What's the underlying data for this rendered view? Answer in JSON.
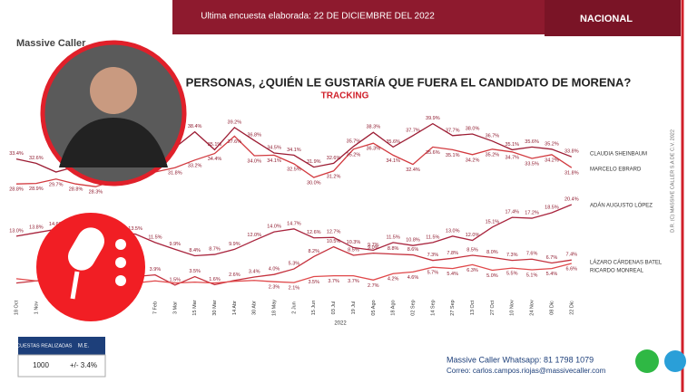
{
  "header": {
    "survey_date": "Ultima encuesta elaborada:  22 DE DICIEMBRE DEL 2022",
    "region": "NACIONAL",
    "logo": "Massive Caller",
    "copyright": "D.R. (C) MASSIVE CALLER S.A DE C.V. 2022"
  },
  "table": {
    "headers": [
      "ENCUESTAS REALIZADAS",
      "M.E."
    ],
    "row": [
      "1000",
      "+/- 3.4%"
    ]
  },
  "footer": {
    "whatsapp": "Massive Caller Whatsapp: 81 1798 1079",
    "email": "Correo: carlos.campos.riojas@massivecaller.com"
  },
  "chart_data": {
    "type": "line",
    "title": "PERSONAS, ¿QUIÉN LE GUSTARÍA QUE FUERA EL CANDIDATO DE MORENA?",
    "subtitle": "TRACKING",
    "year_label": "2022",
    "categories": [
      "18 Oct",
      "1 Nov",
      null,
      null,
      null,
      null,
      null,
      "7 Feb",
      "3 Mar",
      "15 Mar",
      "30 Mar",
      "14 Abr",
      "30 Abr",
      "18 May",
      "2 Jun",
      "15 Jun",
      "03 Jul",
      "19 Jul",
      "05 Ago",
      "18 Ago",
      "02 Sep",
      "14 Sep",
      "27 Sep",
      "13 Oct",
      "27 Oct",
      "10 Nov",
      "24 Nov",
      "08 Dic",
      "22 Dic"
    ],
    "ylim": [
      27,
      41
    ],
    "y2lim": [
      0,
      22
    ],
    "series": [
      {
        "name": "CLAUDIA SHEINBAUM",
        "color": "#9c1c33",
        "values": [
          33.4,
          32.6,
          31,
          32,
          31.5,
          32,
          33,
          32.5,
          35.5,
          38.4,
          35.1,
          39.2,
          36.8,
          34.5,
          34.1,
          31.9,
          32.6,
          35.7,
          38.3,
          35.6,
          37.7,
          39.9,
          37.7,
          38.0,
          36.7,
          35.1,
          35.6,
          35.2,
          33.8
        ],
        "value_labels": [
          "33.4%",
          "32.6%",
          null,
          null,
          null,
          null,
          null,
          null,
          null,
          "38.4%",
          "35.1%",
          "39.2%",
          "36.8%",
          "34.5%",
          "34.1%",
          "31.9%",
          "32.6%",
          "35.7%",
          "38.3%",
          "35.6%",
          "37.7%",
          "39.9%",
          "37.7%",
          "38.0%",
          "36.7%",
          "35.1%",
          "35.6%",
          "35.2%",
          "33.8%"
        ]
      },
      {
        "name": "MARCELO EBRARD",
        "color": "#d23a3f",
        "values": [
          28.8,
          28.9,
          29.7,
          28.8,
          28.3,
          29.5,
          30.5,
          31,
          31.8,
          33.2,
          34.4,
          37.6,
          34.0,
          34.1,
          32.5,
          30.0,
          31.2,
          35.2,
          36.3,
          34.1,
          32.4,
          35.6,
          35.1,
          34.2,
          35.2,
          34.7,
          33.5,
          34.2,
          31.8
        ],
        "value_labels": [
          "28.8%",
          "28.9%",
          "29.7%",
          "28.8%",
          "28.3%",
          null,
          null,
          null,
          "31.8%",
          "33.2%",
          "34.4%",
          "37.6%",
          "34.0%",
          "34.1%",
          "32.5%",
          "30.0%",
          "31.2%",
          "35.2%",
          "36.3%",
          "34.1%",
          "32.4%",
          "35.6%",
          "35.1%",
          "34.2%",
          "35.2%",
          "34.7%",
          "33.5%",
          "34.2%",
          "31.8%"
        ]
      },
      {
        "name": "ADÁN AUGUSTO LÓPEZ",
        "color": "#a8233c",
        "axis": "y2",
        "values": [
          13.0,
          13.8,
          14.6,
          14,
          13.5,
          13.8,
          13.5,
          11.5,
          9.9,
          8.4,
          8.7,
          9.9,
          12.0,
          14.0,
          14.7,
          12.6,
          12.7,
          10.3,
          9.7,
          11.5,
          10.8,
          11.5,
          13.0,
          12.0,
          15.1,
          17.4,
          17.2,
          18.5,
          20.4
        ],
        "value_labels": [
          "13.0%",
          "13.8%",
          "14.6%",
          null,
          null,
          null,
          "13.5%",
          "11.5%",
          "9.9%",
          "8.4%",
          "8.7%",
          "9.9%",
          "12.0%",
          "14.0%",
          "14.7%",
          "12.6%",
          "12.7%",
          "10.3%",
          "9.7%",
          "11.5%",
          "10.8%",
          "11.5%",
          "13.0%",
          "12.0%",
          "15.1%",
          "17.4%",
          "17.2%",
          "18.5%",
          "20.4%"
        ]
      },
      {
        "name": "LÁZARO CÁRDENAS BATEL",
        "color": "#c4303c",
        "axis": "y2",
        "values": [
          2,
          2.5,
          3,
          3,
          3.5,
          3,
          3.5,
          3.9,
          1.5,
          3.5,
          1.6,
          2.6,
          3.4,
          4.0,
          5.3,
          8.2,
          10.5,
          8.5,
          9.0,
          8.8,
          8.6,
          7.3,
          7.8,
          8.5,
          8.0,
          7.3,
          7.6,
          6.7,
          7.4
        ],
        "value_labels": [
          null,
          null,
          null,
          null,
          null,
          null,
          null,
          "3.9%",
          "1.5%",
          "3.5%",
          "1.6%",
          "2.6%",
          "3.4%",
          "4.0%",
          "5.3%",
          "8.2%",
          "10.5%",
          "8.5%",
          "9.0%",
          "8.8%",
          "8.6%",
          "7.3%",
          "7.8%",
          "8.5%",
          "8.0%",
          "7.3%",
          "7.6%",
          "6.7%",
          "7.4%"
        ]
      },
      {
        "name": "RICARDO MONREAL",
        "color": "#e0484a",
        "axis": "y2",
        "values": [
          3,
          2.5,
          2.5,
          2,
          2.5,
          2,
          2,
          2.5,
          2.0,
          2.2,
          2.0,
          2.4,
          2.6,
          2.3,
          2.1,
          3.5,
          3.7,
          3.7,
          2.7,
          4.2,
          4.6,
          5.7,
          5.4,
          6.3,
          5.0,
          5.5,
          5.1,
          5.4,
          6.6
        ],
        "value_labels": [
          null,
          null,
          null,
          null,
          null,
          null,
          null,
          null,
          null,
          null,
          null,
          null,
          null,
          "2.3%",
          "2.1%",
          "3.5%",
          "3.7%",
          "3.7%",
          "2.7%",
          "4.2%",
          "4.6%",
          "5.7%",
          "5.4%",
          "6.3%",
          "5.0%",
          "5.5%",
          "5.1%",
          "5.4%",
          "6.6%"
        ]
      }
    ]
  }
}
